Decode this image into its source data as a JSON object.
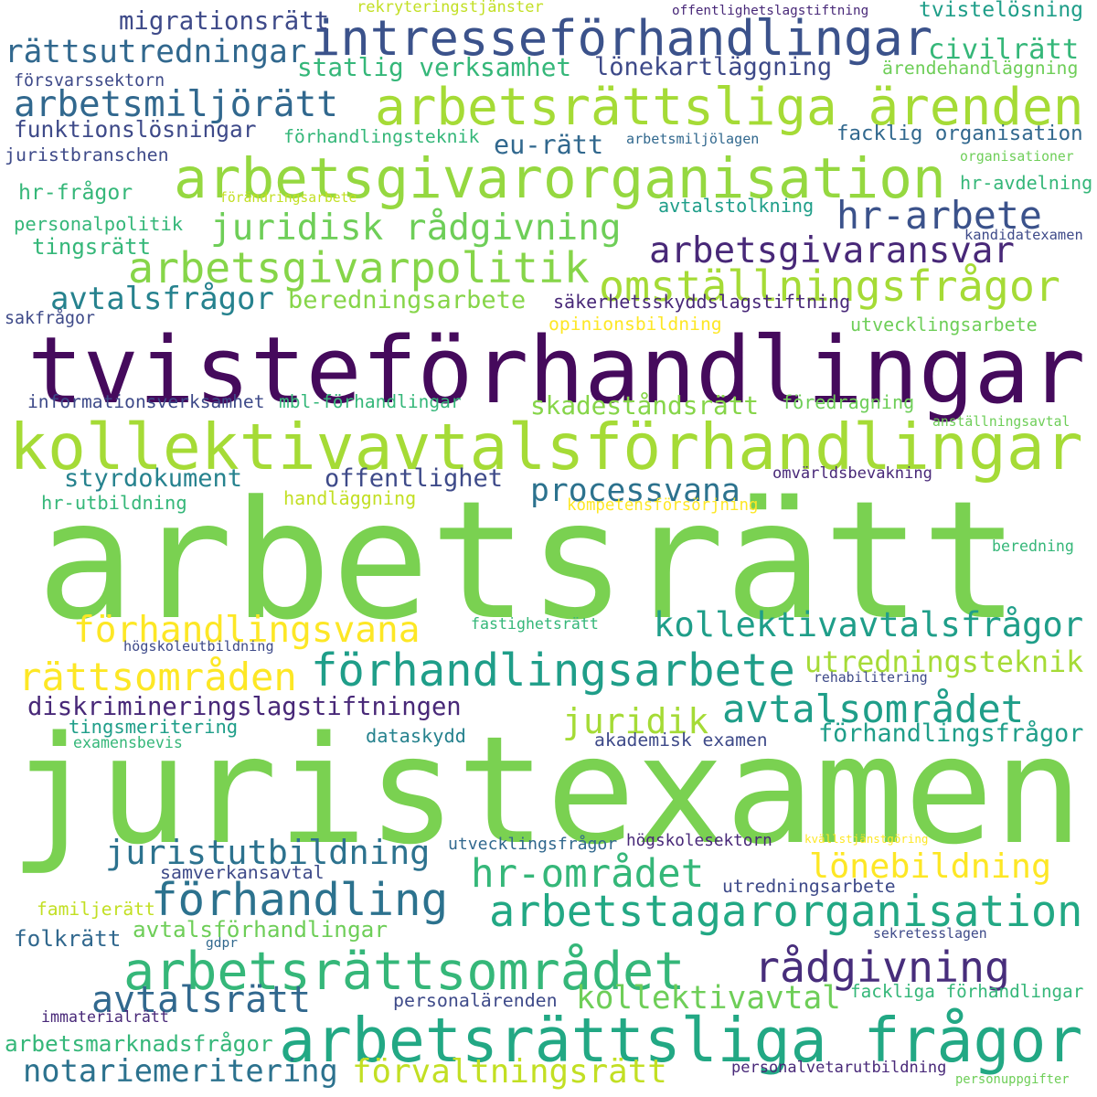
{
  "words": [
    {
      "text": "tvisteförhandlingar",
      "color": "#450a5c"
    },
    {
      "text": "arbetsrätt",
      "color": "#7ad151"
    },
    {
      "text": "juristexamen",
      "color": "#7ad151"
    },
    {
      "text": "kollektivavtalsförhandlingar",
      "color": "#a5db36"
    },
    {
      "text": "arbetsgivarorganisation",
      "color": "#95d840"
    },
    {
      "text": "arbetsrättsliga ärenden",
      "color": "#a5db36"
    },
    {
      "text": "arbetsrättsliga frågor",
      "color": "#22a884"
    },
    {
      "text": "intresseförhandlingar",
      "color": "#3b528b"
    },
    {
      "text": "arbetsgivarpolitik",
      "color": "#86d549"
    },
    {
      "text": "omställningsfrågor",
      "color": "#a5db36"
    },
    {
      "text": "förhandlingsarbete",
      "color": "#1f9e89"
    },
    {
      "text": "arbetsrättsområdet",
      "color": "#35b779"
    },
    {
      "text": "arbetstagarorganisation",
      "color": "#22a884"
    },
    {
      "text": "förhandling",
      "color": "#2c728e"
    },
    {
      "text": "juridisk rådgivning",
      "color": "#6ece58"
    },
    {
      "text": "rättsutredningar",
      "color": "#31688e"
    },
    {
      "text": "arbetsmiljörätt",
      "color": "#31688e"
    },
    {
      "text": "hr-arbete",
      "color": "#3b528b"
    },
    {
      "text": "arbetsgivaransvar",
      "color": "#482878"
    },
    {
      "text": "kollektivavtalsfrågor",
      "color": "#1f9e89"
    },
    {
      "text": "förhandlingsvana",
      "color": "#fde725"
    },
    {
      "text": "rättsområden",
      "color": "#fde725"
    },
    {
      "text": "avtalsområdet",
      "color": "#1f9e89"
    },
    {
      "text": "processvana",
      "color": "#2c728e"
    },
    {
      "text": "juristutbildning",
      "color": "#2c728e"
    },
    {
      "text": "hr-området",
      "color": "#35b779"
    },
    {
      "text": "lönebildning",
      "color": "#fde725"
    },
    {
      "text": "rådgivning",
      "color": "#472d7b"
    },
    {
      "text": "avtalsrätt",
      "color": "#31688e"
    },
    {
      "text": "kollektivavtal",
      "color": "#6ece58"
    },
    {
      "text": "notariemeritering",
      "color": "#2c728e"
    },
    {
      "text": "förvaltningsrätt",
      "color": "#c2df23"
    },
    {
      "text": "juridik",
      "color": "#a5db36"
    },
    {
      "text": "utredningsteknik",
      "color": "#a5db36"
    },
    {
      "text": "avtalsfrågor",
      "color": "#26828e"
    },
    {
      "text": "migrationsrätt",
      "color": "#3e4a89"
    },
    {
      "text": "statlig verksamhet",
      "color": "#35b779"
    },
    {
      "text": "lönekartläggning",
      "color": "#3e4a89"
    },
    {
      "text": "tvistelösning",
      "color": "#1f9e89"
    },
    {
      "text": "civilrätt",
      "color": "#35b779"
    },
    {
      "text": "eu-rätt",
      "color": "#31688e"
    },
    {
      "text": "funktionslösningar",
      "color": "#3e4a89"
    },
    {
      "text": "förhandlingsteknik",
      "color": "#35b779"
    },
    {
      "text": "facklig organisation",
      "color": "#31688e"
    },
    {
      "text": "beredningsarbete",
      "color": "#86d549"
    },
    {
      "text": "säkerhetsskyddslagstiftning",
      "color": "#482878"
    },
    {
      "text": "diskrimineringslagstiftningen",
      "color": "#482878"
    },
    {
      "text": "förhandlingsfrågor",
      "color": "#1f9e89"
    },
    {
      "text": "styrdokument",
      "color": "#26828e"
    },
    {
      "text": "offentlighet",
      "color": "#3e4a89"
    },
    {
      "text": "skadeståndsrätt",
      "color": "#86d549"
    },
    {
      "text": "omvärldsbevakning",
      "color": "#482878"
    },
    {
      "text": "informationsverksamhet",
      "color": "#3e4a89"
    },
    {
      "text": "mbl-förhandlingar",
      "color": "#35b779"
    },
    {
      "text": "utvecklingsarbete",
      "color": "#6ece58"
    },
    {
      "text": "opinionsbildning",
      "color": "#fde725"
    },
    {
      "text": "föredragning",
      "color": "#6ece58"
    },
    {
      "text": "hr-utbildning",
      "color": "#35b779"
    },
    {
      "text": "handläggning",
      "color": "#c2df23"
    },
    {
      "text": "juristbranschen",
      "color": "#3e4a89"
    },
    {
      "text": "hr-frågor",
      "color": "#35b779"
    },
    {
      "text": "avtalstolkning",
      "color": "#1f9e89"
    },
    {
      "text": "hr-avdelning",
      "color": "#35b779"
    },
    {
      "text": "personalpolitik",
      "color": "#35b779"
    },
    {
      "text": "tingsrätt",
      "color": "#35b779"
    },
    {
      "text": "ärendehandläggning",
      "color": "#6ece58"
    },
    {
      "text": "fastighetsrätt",
      "color": "#35b779"
    },
    {
      "text": "tingsmeritering",
      "color": "#1f9e89"
    },
    {
      "text": "dataskydd",
      "color": "#26828e"
    },
    {
      "text": "akademisk examen",
      "color": "#3e4a89"
    },
    {
      "text": "samverkansavtal",
      "color": "#3e4a89"
    },
    {
      "text": "utredningsarbete",
      "color": "#3e4a89"
    },
    {
      "text": "familjerätt",
      "color": "#c2df23"
    },
    {
      "text": "folkrätt",
      "color": "#31688e"
    },
    {
      "text": "avtalsförhandlingar",
      "color": "#6ece58"
    },
    {
      "text": "personalärenden",
      "color": "#3e4a89"
    },
    {
      "text": "fackliga förhandlingar",
      "color": "#35b779"
    },
    {
      "text": "immaterialrätt",
      "color": "#482878"
    },
    {
      "text": "arbetsmarknadsfrågor",
      "color": "#35b779"
    },
    {
      "text": "personalvetarutbildning",
      "color": "#482878"
    },
    {
      "text": "rekryteringstjänster",
      "color": "#c2df23"
    },
    {
      "text": "offentlighetslagstiftning",
      "color": "#482878"
    },
    {
      "text": "försvarssektorn",
      "color": "#3e4a89"
    },
    {
      "text": "arbetsmiljölagen",
      "color": "#31688e"
    },
    {
      "text": "organisationer",
      "color": "#6ece58"
    },
    {
      "text": "förändringsarbete",
      "color": "#c2df23"
    },
    {
      "text": "kandidatexamen",
      "color": "#3e4a89"
    },
    {
      "text": "sakfrågor",
      "color": "#3e4a89"
    },
    {
      "text": "anställningsavtal",
      "color": "#6ece58"
    },
    {
      "text": "kompetensförsörjning",
      "color": "#fde725"
    },
    {
      "text": "beredning",
      "color": "#35b779"
    },
    {
      "text": "högskoleutbildning",
      "color": "#3e4a89"
    },
    {
      "text": "rehabilitering",
      "color": "#3e4a89"
    },
    {
      "text": "examensbevis",
      "color": "#35b779"
    },
    {
      "text": "utvecklingsfrågor",
      "color": "#31688e"
    },
    {
      "text": "högskolesektorn",
      "color": "#482878"
    },
    {
      "text": "kvällstjänstgöring",
      "color": "#fde725"
    },
    {
      "text": "gdpr",
      "color": "#31688e"
    },
    {
      "text": "sekretesslagen",
      "color": "#3e4a89"
    },
    {
      "text": "personuppgifter",
      "color": "#6ece58"
    }
  ]
}
